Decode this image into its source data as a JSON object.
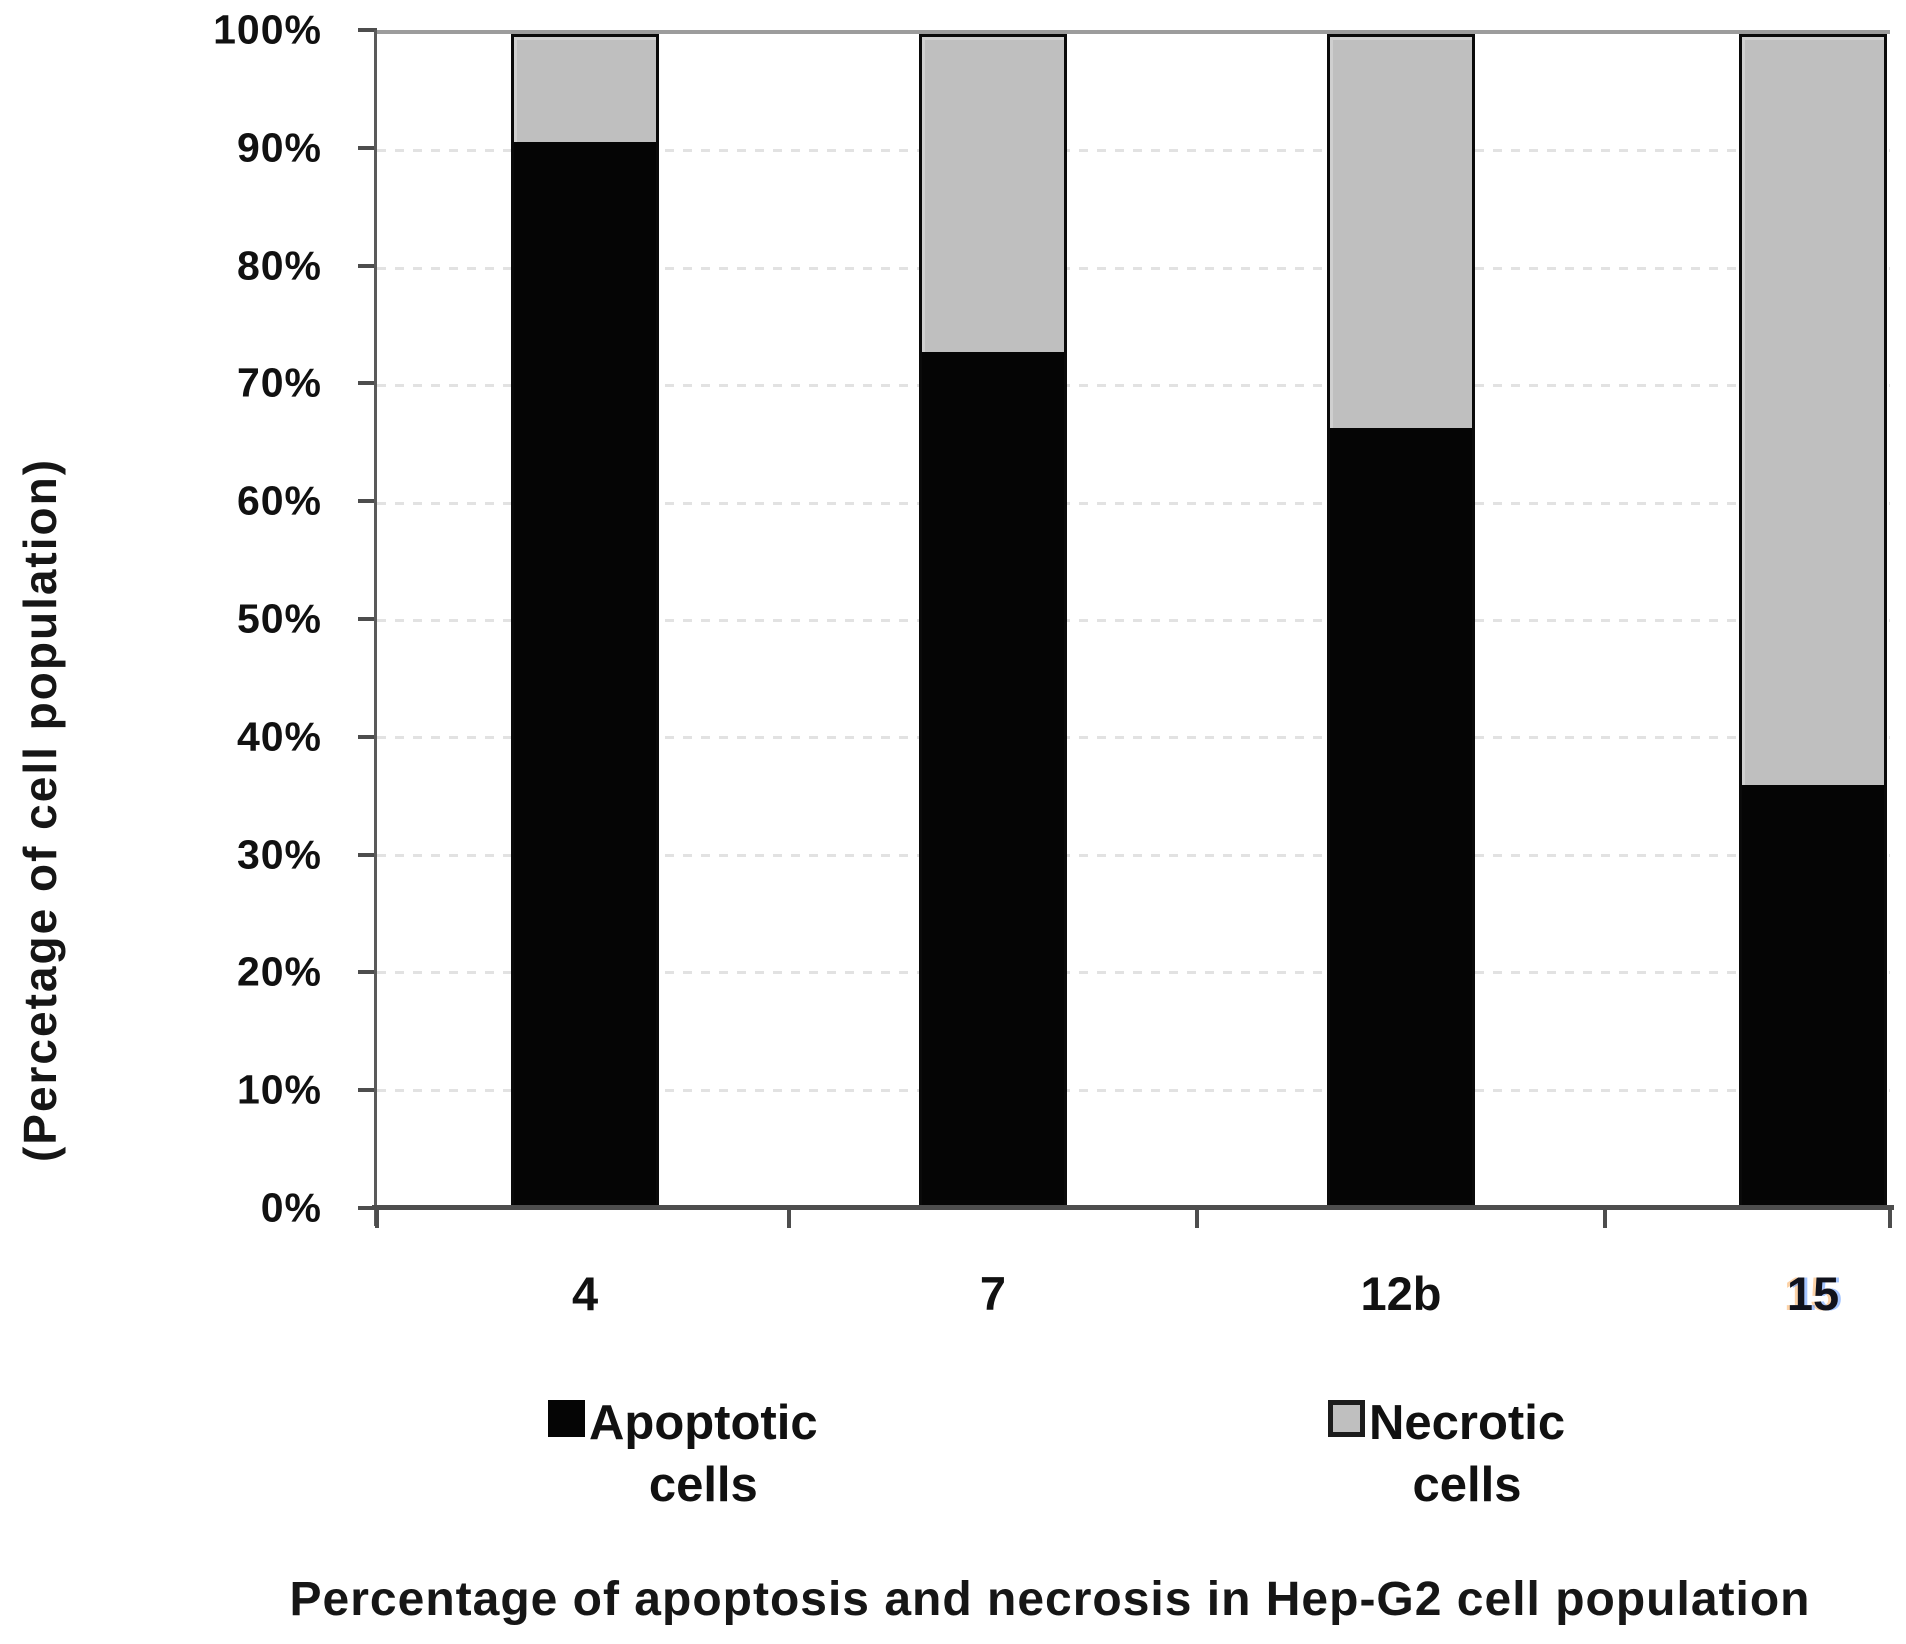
{
  "chart": {
    "title": "Percentage of apoptosis and necrosis in Hep-G2 cell population",
    "y_axis_title": "(Percetage of cell population)"
  },
  "chart_data": {
    "type": "bar",
    "subtype": "stacked-100",
    "title": "Percentage of apoptosis and necrosis in Hep-G2 cell population",
    "xlabel": "",
    "ylabel": "(Percetage of cell population)",
    "categories": [
      "4",
      "7",
      "12b",
      "15"
    ],
    "series": [
      {
        "name": "Apoptotic cells",
        "color": "#050505",
        "values": [
          91,
          73,
          66.5,
          36
        ]
      },
      {
        "name": "Necrotic cells",
        "color": "#bfbfbf",
        "values": [
          9,
          27,
          33.5,
          64
        ]
      }
    ],
    "ylim": [
      0,
      100
    ],
    "yticks": {
      "values": [
        0,
        10,
        20,
        30,
        40,
        50,
        60,
        70,
        80,
        90,
        100
      ],
      "labels": [
        "0%",
        "10%",
        "20%",
        "30%",
        "40%",
        "50%",
        "60%",
        "70%",
        "80%",
        "90%",
        "100%"
      ]
    },
    "grid": "horizontal-dotted",
    "legend_position": "below",
    "legend": [
      {
        "line1": "Apoptotic",
        "line2": "cells"
      },
      {
        "line1": "Necrotic",
        "line2": "cells"
      }
    ],
    "layout": {
      "bar_centers_pct": [
        13.75,
        40.71,
        67.68,
        94.91
      ],
      "bar_width_pct": 9.78,
      "x_tick_pcts": [
        0,
        27.23,
        54.21,
        81.18,
        100
      ],
      "fringe_category_index": 3
    }
  }
}
